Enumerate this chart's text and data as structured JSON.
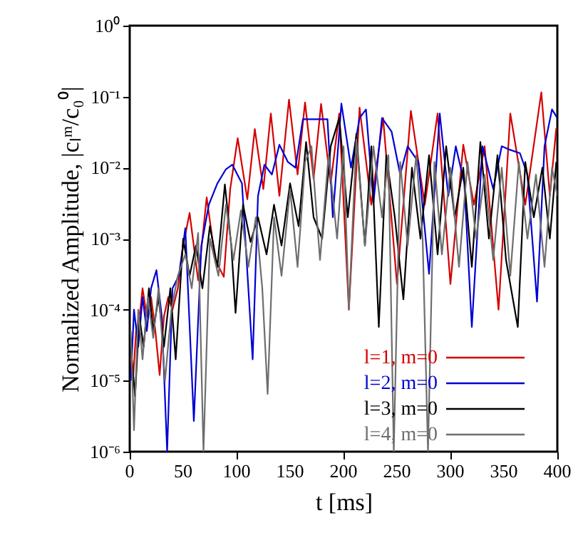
{
  "chart_data": {
    "type": "line",
    "xlabel": "t [ms]",
    "ylabel": "Normalized Amplitude, |cₗᵐ/c₀⁰|",
    "xlim": [
      0,
      400
    ],
    "xticks": [
      0,
      50,
      100,
      150,
      200,
      250,
      300,
      350,
      400
    ],
    "ylim": [
      1e-06,
      1
    ],
    "log": true,
    "yticks": [
      {
        "value": 1e-06,
        "label": "10⁻⁶"
      },
      {
        "value": 1e-05,
        "label": "10⁻⁵"
      },
      {
        "value": 0.0001,
        "label": "10⁻⁴"
      },
      {
        "value": 0.001,
        "label": "10⁻³"
      },
      {
        "value": 0.01,
        "label": "10⁻²"
      },
      {
        "value": 0.1,
        "label": "10⁻¹"
      },
      {
        "value": 1,
        "label": "10⁰"
      }
    ],
    "grid": false,
    "legend": "bottom right",
    "line_style": "solid",
    "marker": "none",
    "series": [
      {
        "name": "l=1, m=0",
        "color": "#d40000",
        "x": [
          1,
          3,
          6,
          10,
          12,
          16,
          20,
          24,
          28,
          32,
          36,
          40,
          45,
          50,
          56,
          64,
          72,
          80,
          88,
          94,
          101,
          110,
          117,
          125,
          132,
          140,
          149,
          157,
          164,
          172,
          179,
          188,
          196,
          205,
          215,
          226,
          237,
          250,
          263,
          276,
          288,
          300,
          312,
          322,
          332,
          345,
          356,
          370,
          385,
          393,
          399
        ],
        "values": [
          2e-05,
          1e-05,
          5e-05,
          0.0001,
          0.0002,
          8e-05,
          0.00015,
          5e-05,
          1.2e-05,
          8e-05,
          0.00015,
          0.0001,
          0.0002,
          0.0008,
          0.0023,
          0.00026,
          0.0038,
          0.0005,
          0.00029,
          0.005,
          0.026,
          0.0036,
          0.035,
          0.005,
          0.058,
          0.004,
          0.091,
          0.008,
          0.083,
          0.007,
          0.079,
          0.006,
          0.058,
          0.0001,
          0.07,
          0.003,
          0.05,
          0.00023,
          0.063,
          0.003,
          0.058,
          0.00023,
          0.021,
          0.003,
          0.02,
          0.0001,
          0.058,
          0.003,
          0.115,
          0.004,
          0.036
        ]
      },
      {
        "name": "l=2, m=0",
        "color": "#0000d4",
        "x": [
          1,
          4,
          8,
          12,
          16,
          20,
          25,
          30,
          35,
          40,
          46,
          52,
          60,
          67,
          74,
          82,
          90,
          96,
          105,
          115,
          120,
          126,
          133,
          140,
          148,
          155,
          162,
          170,
          185,
          190,
          198,
          207,
          215,
          221,
          228,
          236,
          245,
          253,
          260,
          270,
          280,
          290,
          298,
          305,
          313,
          320,
          330,
          340,
          348,
          355,
          365,
          372,
          381,
          388,
          395,
          400
        ],
        "values": [
          1e-05,
          0.0001,
          3e-05,
          0.00015,
          5e-05,
          0.0002,
          0.00036,
          8e-05,
          1e-06,
          0.0002,
          0.0003,
          0.0014,
          2.7e-06,
          0.0008,
          0.003,
          0.006,
          0.0095,
          0.011,
          0.006,
          2e-05,
          0.004,
          0.011,
          0.008,
          0.021,
          0.012,
          0.01,
          0.048,
          0.048,
          0.048,
          0.002,
          0.08,
          0.01,
          0.05,
          0.066,
          0.0032,
          0.05,
          0.032,
          0.008,
          0.02,
          0.012,
          0.00032,
          0.058,
          0.004,
          0.02,
          0.006,
          5.7e-05,
          0.02,
          0.005,
          0.02,
          0.018,
          0.016,
          0.008,
          0.00013,
          0.02,
          0.066,
          0.05
        ]
      },
      {
        "name": "l=3, m=0",
        "color": "#000000",
        "x": [
          1,
          5,
          9,
          13,
          18,
          22,
          27,
          32,
          38,
          43,
          50,
          56,
          62,
          68,
          75,
          82,
          89,
          95,
          99,
          106,
          113,
          120,
          128,
          135,
          142,
          150,
          158,
          165,
          172,
          180,
          188,
          196,
          204,
          212,
          220,
          226,
          233,
          240,
          248,
          256,
          264,
          272,
          280,
          288,
          296,
          304,
          312,
          320,
          328,
          336,
          344,
          352,
          363,
          370,
          378,
          386,
          393,
          399
        ],
        "values": [
          3e-05,
          6e-06,
          8e-05,
          3e-05,
          0.0002,
          5e-05,
          0.00015,
          3e-05,
          0.0002,
          2e-05,
          0.001,
          0.0003,
          0.0008,
          0.0002,
          0.0015,
          0.0004,
          0.0058,
          0.0008,
          9e-05,
          0.003,
          0.0009,
          0.002,
          0.0006,
          0.003,
          0.0008,
          0.006,
          0.0015,
          0.023,
          0.002,
          0.001,
          0.02,
          0.05,
          0.002,
          0.03,
          0.0008,
          0.02,
          5.7e-05,
          0.015,
          0.002,
          0.00014,
          0.01,
          0.001,
          0.015,
          0.0006,
          0.02,
          0.002,
          0.01,
          0.0004,
          0.023,
          0.001,
          0.015,
          0.0005,
          5.7e-05,
          0.012,
          0.002,
          0.01,
          0.001,
          0.012
        ]
      },
      {
        "name": "l=4, m=0",
        "color": "#6e6e6e",
        "x": [
          1,
          4,
          8,
          12,
          17,
          22,
          27,
          33,
          39,
          45,
          52,
          58,
          64,
          69,
          75,
          83,
          90,
          97,
          104,
          111,
          118,
          124,
          129,
          135,
          142,
          150,
          157,
          164,
          170,
          178,
          186,
          194,
          200,
          205,
          212,
          220,
          228,
          236,
          242,
          247,
          253,
          260,
          268,
          274,
          279,
          285,
          292,
          300,
          308,
          316,
          324,
          332,
          340,
          348,
          356,
          364,
          372,
          380,
          388,
          395,
          400
        ],
        "values": [
          5e-05,
          2e-06,
          0.0001,
          2e-05,
          0.00015,
          4e-05,
          0.0002,
          1e-05,
          0.0001,
          0.0003,
          0.0006,
          0.0002,
          0.0012,
          1e-06,
          0.001,
          0.0003,
          0.003,
          0.0005,
          0.0025,
          0.0004,
          0.002,
          0.0002,
          6.5e-06,
          0.002,
          0.0003,
          0.005,
          0.0004,
          0.012,
          0.02,
          0.0005,
          0.015,
          0.001,
          0.02,
          0.0001,
          0.025,
          0.0008,
          0.02,
          0.002,
          0.015,
          1e-06,
          0.012,
          0.0008,
          0.015,
          0.001,
          1e-06,
          0.012,
          0.0006,
          0.01,
          0.0004,
          0.012,
          0.001,
          0.008,
          0.0005,
          0.01,
          0.0003,
          0.012,
          0.001,
          0.008,
          0.0004,
          0.01,
          0.004
        ]
      }
    ]
  }
}
